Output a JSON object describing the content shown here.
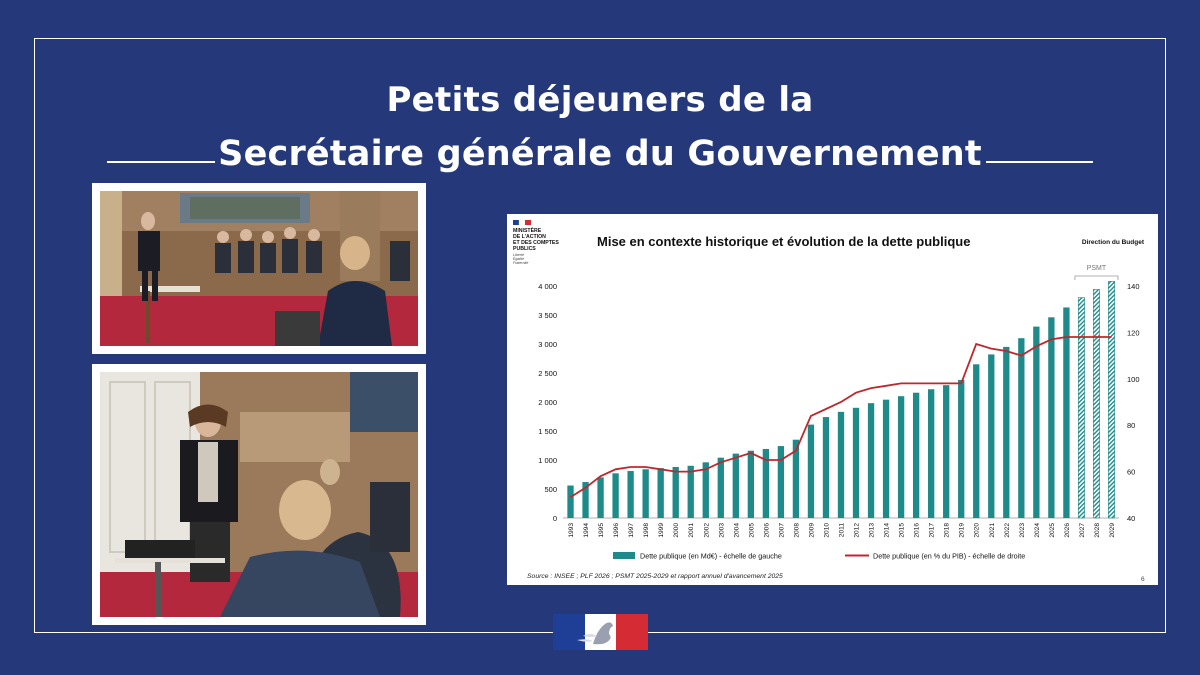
{
  "header": {
    "line1": "Petits déjeuners de la",
    "line2": "Secrétaire générale du Gouvernement"
  },
  "photos": [
    {
      "scene": "meeting-room-1"
    },
    {
      "scene": "meeting-room-2"
    }
  ],
  "logo_lines": [
    "MINISTÈRE",
    "DE L'ACTION",
    "ET DES COMPTES",
    "PUBLICS"
  ],
  "logo_motto": [
    "Liberté",
    "Égalité",
    "Fraternité"
  ],
  "chart_data": {
    "type": "bar",
    "title": "Mise en contexte historique et évolution de la dette publique",
    "corner_label": "Direction du Budget",
    "psmt_label": "PSMT",
    "categories": [
      "1993",
      "1994",
      "1995",
      "1996",
      "1997",
      "1998",
      "1999",
      "2000",
      "2001",
      "2002",
      "2003",
      "2004",
      "2005",
      "2006",
      "2007",
      "2008",
      "2009",
      "2010",
      "2011",
      "2012",
      "2013",
      "2014",
      "2015",
      "2016",
      "2017",
      "2018",
      "2019",
      "2020",
      "2021",
      "2022",
      "2023",
      "2024",
      "2025",
      "2026",
      "2027",
      "2028",
      "2029"
    ],
    "left_ticks": [
      "0",
      "500",
      "1 000",
      "1 500",
      "2 000",
      "2 500",
      "3 000",
      "3 500",
      "4 000"
    ],
    "right_ticks": [
      "40",
      "60",
      "80",
      "100",
      "120",
      "140"
    ],
    "ylim_left": [
      0,
      4000
    ],
    "ylim_right": [
      40,
      140
    ],
    "series": [
      {
        "name": "Dette publique (en Md€) - échelle de gauche",
        "axis": "left",
        "color": "#1e8a8a",
        "values": [
          560,
          620,
          700,
          770,
          810,
          840,
          860,
          880,
          900,
          960,
          1040,
          1110,
          1160,
          1190,
          1240,
          1350,
          1610,
          1740,
          1830,
          1900,
          1980,
          2040,
          2100,
          2160,
          2220,
          2290,
          2380,
          2650,
          2820,
          2950,
          3100,
          3300,
          3460,
          3630,
          3800,
          3940,
          4080
        ],
        "hatched_from": "2027"
      },
      {
        "name": "Dette publique (en % du PIB) - échelle de droite",
        "axis": "right",
        "color": "#c0272d",
        "values": [
          49,
          53,
          58,
          61,
          62,
          62,
          61,
          60,
          60,
          61,
          64,
          66,
          68,
          65,
          65,
          69,
          84,
          87,
          90,
          94,
          96,
          97,
          98,
          98,
          98,
          98,
          98,
          115,
          113,
          112,
          110,
          114,
          117,
          118,
          118,
          118,
          118
        ]
      }
    ],
    "source": "Source : INSEE ; PLF 2026 ; PSMT 2025-2029 et rapport annuel d'avancement 2025",
    "page_number": "6"
  }
}
